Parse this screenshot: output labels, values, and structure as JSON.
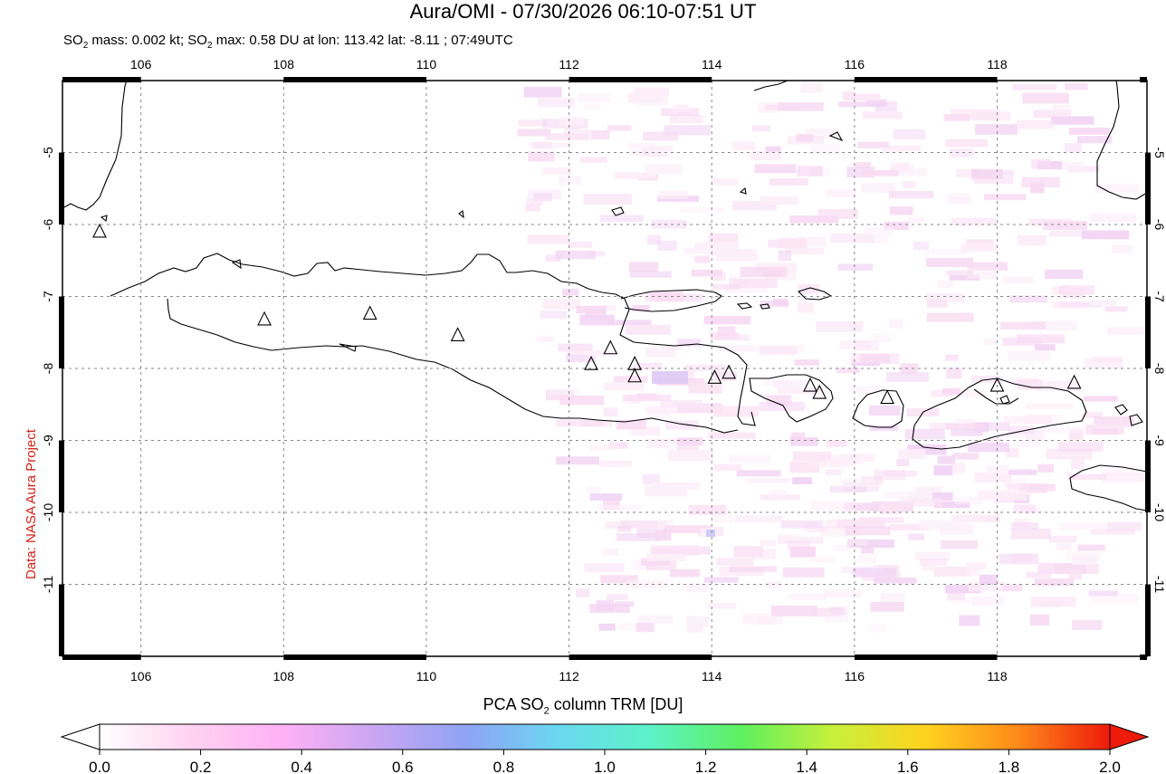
{
  "header": {
    "title": "Aura/OMI - 07/30/2026 06:10-07:51 UT",
    "subtitle_parts": [
      "SO",
      "2",
      " mass: 0.002 kt; SO",
      "2",
      " max: 0.58 DU at lon: 113.42 lat: -8.11 ; 07:49UTC"
    ]
  },
  "side_credit": "Data: NASA Aura Project",
  "map": {
    "lon_range": [
      104.9,
      120.1
    ],
    "lat_range": [
      -12.0,
      -4.0
    ],
    "lon_ticks": [
      "106",
      "108",
      "110",
      "112",
      "114",
      "116",
      "118"
    ],
    "lat_ticks": [
      "-5",
      "-6",
      "-7",
      "-8",
      "-9",
      "-10",
      "-11"
    ],
    "volcanoes": [
      {
        "lon": 105.42,
        "lat": -6.1
      },
      {
        "lon": 107.73,
        "lat": -7.32
      },
      {
        "lon": 109.21,
        "lat": -7.24
      },
      {
        "lon": 110.44,
        "lat": -7.54
      },
      {
        "lon": 112.31,
        "lat": -7.94
      },
      {
        "lon": 112.58,
        "lat": -7.72
      },
      {
        "lon": 112.92,
        "lat": -7.94
      },
      {
        "lon": 112.92,
        "lat": -8.11
      },
      {
        "lon": 114.04,
        "lat": -8.13
      },
      {
        "lon": 114.24,
        "lat": -8.06
      },
      {
        "lon": 115.38,
        "lat": -8.24
      },
      {
        "lon": 115.51,
        "lat": -8.34
      },
      {
        "lon": 116.46,
        "lat": -8.41
      },
      {
        "lon": 118.0,
        "lat": -8.24
      },
      {
        "lon": 119.08,
        "lat": -8.2
      }
    ]
  },
  "colorbar": {
    "title_parts": [
      "PCA SO",
      "2",
      " column TRM [DU]"
    ],
    "ticks": [
      "0.0",
      "0.2",
      "0.4",
      "0.6",
      "0.8",
      "1.0",
      "1.2",
      "1.4",
      "1.6",
      "1.8",
      "2.0"
    ],
    "colors": [
      "#ffffff",
      "#ffd2f2",
      "#ffb0f5",
      "#c9a6f2",
      "#8fa3f5",
      "#6ad8f0",
      "#5cf2c8",
      "#5ef05e",
      "#c8f03a",
      "#ffd21e",
      "#ff8a1a",
      "#ee1a0a"
    ]
  }
}
